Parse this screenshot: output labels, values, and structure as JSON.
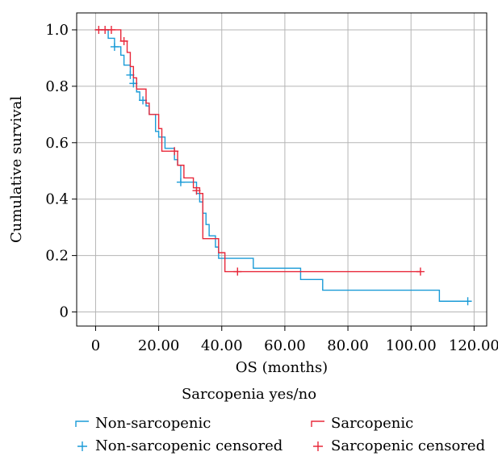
{
  "chart_data": {
    "type": "line",
    "subtype": "kaplan-meier",
    "xlabel": "OS (months)",
    "ylabel": "Cumulative survival",
    "xlim": [
      -6,
      124
    ],
    "ylim": [
      -0.05,
      1.06
    ],
    "x_ticks": [
      0,
      20,
      40,
      60,
      80,
      100,
      120
    ],
    "x_tick_labels": [
      "0",
      "20.00",
      "40.00",
      "60.00",
      "80.00",
      "100.00",
      "120.00"
    ],
    "y_ticks": [
      0,
      0.2,
      0.4,
      0.6,
      0.8,
      1.0
    ],
    "y_tick_labels": [
      "0",
      "0.2",
      "0.4",
      "0.6",
      "0.8",
      "1.0"
    ],
    "grid": true,
    "legend_title": "Sarcopenia yes/no",
    "legend_position": "bottom",
    "series": [
      {
        "name": "Non-sarcopenic",
        "color": "#1a9bd7",
        "steps": [
          [
            0,
            1.0
          ],
          [
            4,
            0.97
          ],
          [
            6,
            0.94
          ],
          [
            8,
            0.91
          ],
          [
            9,
            0.875
          ],
          [
            11,
            0.84
          ],
          [
            12,
            0.81
          ],
          [
            13,
            0.78
          ],
          [
            14,
            0.75
          ],
          [
            16,
            0.73
          ],
          [
            17,
            0.7
          ],
          [
            19,
            0.64
          ],
          [
            20,
            0.62
          ],
          [
            22,
            0.58
          ],
          [
            25,
            0.54
          ],
          [
            26,
            0.52
          ],
          [
            27,
            0.46
          ],
          [
            32,
            0.42
          ],
          [
            33,
            0.39
          ],
          [
            34,
            0.35
          ],
          [
            35,
            0.31
          ],
          [
            36,
            0.27
          ],
          [
            38,
            0.23
          ],
          [
            39,
            0.19
          ],
          [
            50,
            0.155
          ],
          [
            65,
            0.115
          ],
          [
            72,
            0.077
          ],
          [
            109,
            0.038
          ],
          [
            118,
            0.038
          ]
        ],
        "censored": [
          [
            6,
            0.94
          ],
          [
            11,
            0.84
          ],
          [
            12,
            0.81
          ],
          [
            15,
            0.75
          ],
          [
            27,
            0.46
          ],
          [
            118,
            0.038
          ]
        ]
      },
      {
        "name": "Sarcopenic",
        "color": "#e8283a",
        "steps": [
          [
            0,
            1.0
          ],
          [
            8,
            0.96
          ],
          [
            10,
            0.92
          ],
          [
            11,
            0.87
          ],
          [
            12,
            0.83
          ],
          [
            13,
            0.79
          ],
          [
            16,
            0.74
          ],
          [
            17,
            0.7
          ],
          [
            20,
            0.65
          ],
          [
            21,
            0.57
          ],
          [
            26,
            0.52
          ],
          [
            28,
            0.475
          ],
          [
            31,
            0.44
          ],
          [
            33,
            0.42
          ],
          [
            34,
            0.26
          ],
          [
            39,
            0.21
          ],
          [
            41,
            0.143
          ],
          [
            103,
            0.143
          ]
        ],
        "censored": [
          [
            1,
            1.0
          ],
          [
            3,
            1.0
          ],
          [
            5,
            1.0
          ],
          [
            9,
            0.96
          ],
          [
            25,
            0.57
          ],
          [
            32,
            0.43
          ],
          [
            45,
            0.143
          ],
          [
            103,
            0.143
          ]
        ]
      }
    ],
    "legend_entries": [
      {
        "label": "Non-sarcopenic",
        "marker": "step",
        "color": "#1a9bd7"
      },
      {
        "label": "Sarcopenic",
        "marker": "step",
        "color": "#e8283a"
      },
      {
        "label": "Non-sarcopenic censored",
        "marker": "plus",
        "color": "#1a9bd7"
      },
      {
        "label": "Sarcopenic censored",
        "marker": "plus",
        "color": "#e8283a"
      }
    ]
  }
}
